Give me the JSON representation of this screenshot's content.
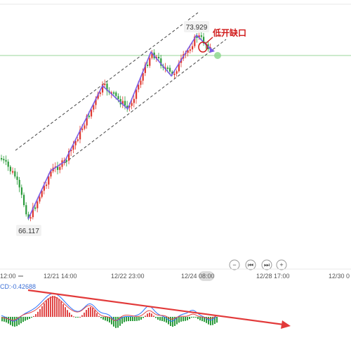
{
  "price_chart": {
    "high_label": "73.929",
    "low_label": "66.117",
    "annotation": "低开缺口",
    "colors": {
      "up": "#e0392f",
      "down": "#2c9c3c",
      "zigzag": "#7b5ce6",
      "annotation": "#d01818",
      "reference_line": "#7fd07f"
    }
  },
  "controls": [
    {
      "name": "zoom-out",
      "glyph": "−"
    },
    {
      "name": "jump-start",
      "glyph": "⏮"
    },
    {
      "name": "jump-end",
      "glyph": "⏭"
    },
    {
      "name": "zoom-in",
      "glyph": "+"
    }
  ],
  "time_axis": {
    "ticks": [
      "12:00",
      "12/21 14:00",
      "12/22 23:00",
      "12/24 08:00",
      "12/28 17:00",
      "12/30 0"
    ]
  },
  "macd": {
    "label": "CD:-0.42688",
    "colors": {
      "label": "#3b6fd6",
      "dif": "#2f74ff",
      "dea": "#e04848",
      "trend_arrow": "#e23a3a",
      "pos_bar": "#e04848",
      "neg_bar": "#2c9c3c"
    }
  }
}
